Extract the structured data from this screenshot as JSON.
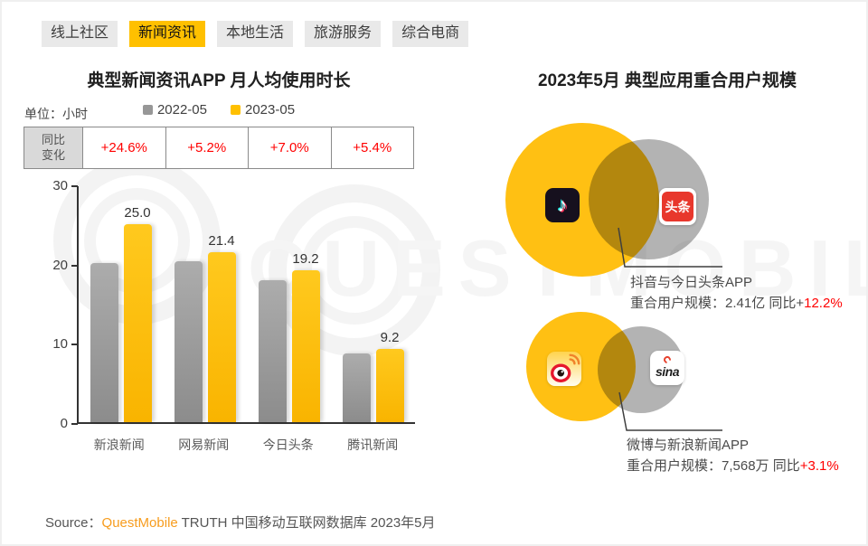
{
  "tabs": {
    "items": [
      {
        "label": "线上社区",
        "active": false
      },
      {
        "label": "新闻资讯",
        "active": true
      },
      {
        "label": "本地生活",
        "active": false
      },
      {
        "label": "旅游服务",
        "active": false
      },
      {
        "label": "综合电商",
        "active": false
      }
    ]
  },
  "left_panel": {
    "title": "典型新闻资讯APP 月人均使用时长",
    "unit_label": "单位：小时",
    "yoy_header": "同比\n变化"
  },
  "chart_data": {
    "type": "bar",
    "title": "典型新闻资讯APP 月人均使用时长",
    "unit": "小时",
    "categories": [
      "新浪新闻",
      "网易新闻",
      "今日头条",
      "腾讯新闻"
    ],
    "series": [
      {
        "name": "2022-05",
        "color": "#979797",
        "values": [
          20.1,
          20.3,
          17.9,
          8.7
        ],
        "show_labels": false
      },
      {
        "name": "2023-05",
        "color": "#FFC000",
        "values": [
          25.0,
          21.4,
          19.2,
          9.2
        ],
        "show_labels": true,
        "data_labels": [
          "25.0",
          "21.4",
          "19.2",
          "9.2"
        ]
      }
    ],
    "yoy_change": [
      "+24.6%",
      "+5.2%",
      "+7.0%",
      "+5.4%"
    ],
    "ylim": [
      0,
      30
    ],
    "yticks": [
      0,
      10,
      20,
      30
    ],
    "grid": false,
    "legend_position": "top"
  },
  "right_panel": {
    "title": "2023年5月 典型应用重合用户规模",
    "venns": [
      {
        "label_line1": "抖音与今日头条APP",
        "label_line2_prefix": "重合用户规模：2.41亿 同比+",
        "delta": "12.2%"
      },
      {
        "label_line1": "微博与新浪新闻APP",
        "label_line2_prefix": "重合用户规模：7,568万 同比",
        "delta": "+3.1%"
      }
    ]
  },
  "icons": {
    "douyin_glyph": "♪",
    "toutiao_text": "头条",
    "sina_text": "sina"
  },
  "footer": {
    "source_label": "Source：",
    "brand": "QuestMobile",
    "source_rest": " TRUTH 中国移动互联网数据库 2023年5月"
  },
  "watermark": {
    "text": "QUESTMOBILE"
  },
  "colors": {
    "accent_yellow": "#FFC000",
    "bar_gray": "#979797",
    "venn_gray": "#B3B3B3",
    "delta_red": "#FF0000",
    "brand_orange": "#F79C1D"
  }
}
